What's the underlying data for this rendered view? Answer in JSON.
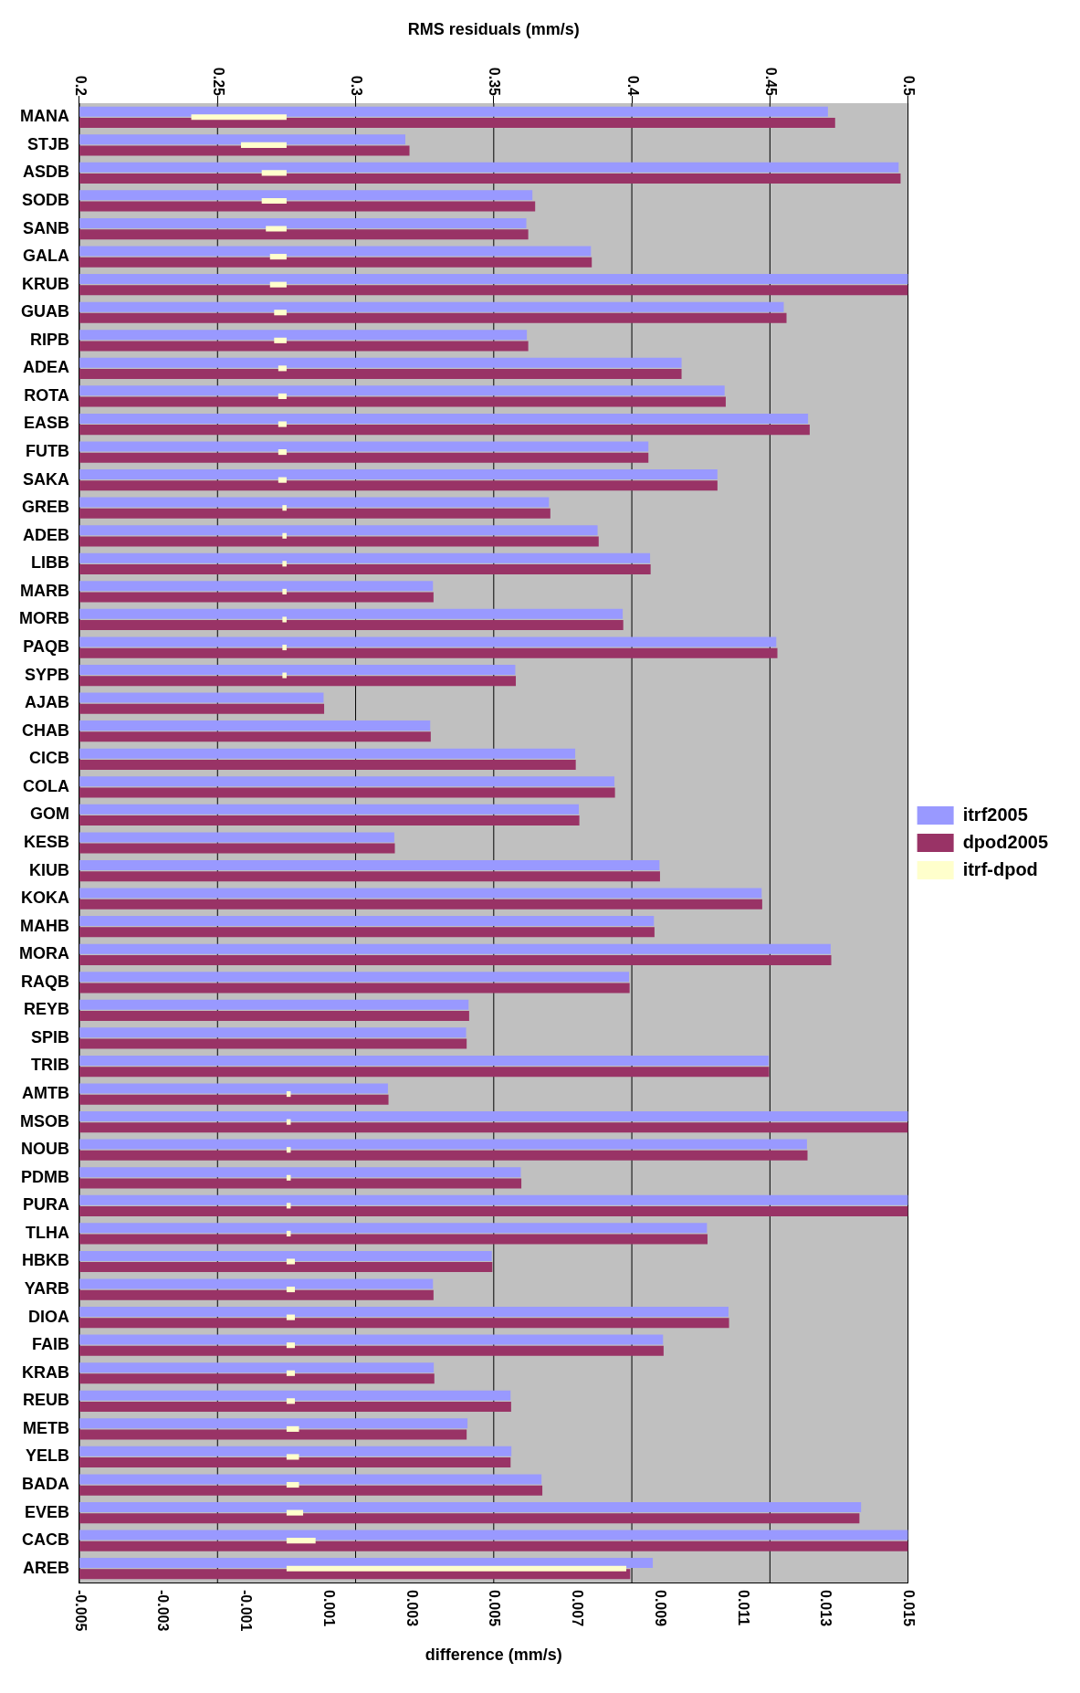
{
  "chart_data": {
    "type": "bar",
    "orientation": "horizontal",
    "xlabel": "difference (mm/s)",
    "x2label": "RMS residuals (mm/s)",
    "categories": [
      "MANA",
      "STJB",
      "ASDB",
      "SODB",
      "SANB",
      "GALA",
      "KRUB",
      "GUAB",
      "RIPB",
      "ADEA",
      "ROTA",
      "EASB",
      "FUTB",
      "SAKA",
      "GREB",
      "ADEB",
      "LIBB",
      "MARB",
      "MORB",
      "PAQB",
      "SYPB",
      "AJAB",
      "CHAB",
      "CICB",
      "COLA",
      "GOM",
      "KESB",
      "KIUB",
      "KOKA",
      "MAHB",
      "MORA",
      "RAQB",
      "REYB",
      "SPIB",
      "TRIB",
      "AMTB",
      "MSOB",
      "NOUB",
      "PDMB",
      "PURA",
      "TLHA",
      "HBKB",
      "YARB",
      "DIOA",
      "FAIB",
      "KRAB",
      "REUB",
      "METB",
      "YELB",
      "BADA",
      "EVEB",
      "CACB",
      "AREB"
    ],
    "series": [
      {
        "name": "itrf2005",
        "color": "#9999ff",
        "axis": "x2",
        "values": [
          0.471,
          0.318,
          0.4966,
          0.364,
          0.3618,
          0.3852,
          0.5,
          0.455,
          0.362,
          0.418,
          0.4336,
          0.4638,
          0.406,
          0.431,
          0.37,
          0.3876,
          0.4066,
          0.328,
          0.3967,
          0.4523,
          0.3578,
          0.2884,
          0.327,
          0.3795,
          0.3937,
          0.3808,
          0.314,
          0.41,
          0.447,
          0.408,
          0.472,
          0.399,
          0.3409,
          0.34,
          0.4495,
          0.3117,
          0.5,
          0.4634,
          0.3598,
          0.5,
          0.4272,
          0.3493,
          0.328,
          0.435,
          0.4113,
          0.3283,
          0.3561,
          0.3405,
          0.3564,
          0.3673,
          0.483,
          0.5,
          0.4076
        ]
      },
      {
        "name": "dpod2005",
        "color": "#993366",
        "axis": "x2",
        "values": [
          0.4736,
          0.3195,
          0.4973,
          0.365,
          0.3625,
          0.3855,
          0.5,
          0.456,
          0.3625,
          0.418,
          0.434,
          0.4644,
          0.406,
          0.431,
          0.3705,
          0.388,
          0.4068,
          0.3282,
          0.3969,
          0.4527,
          0.358,
          0.2886,
          0.3272,
          0.3797,
          0.3939,
          0.381,
          0.3142,
          0.4102,
          0.4472,
          0.4082,
          0.4722,
          0.3992,
          0.3411,
          0.3402,
          0.4497,
          0.3119,
          0.5,
          0.4636,
          0.36,
          0.5,
          0.4274,
          0.3495,
          0.3282,
          0.4352,
          0.4115,
          0.3285,
          0.3563,
          0.3402,
          0.3561,
          0.3676,
          0.4824,
          0.5,
          0.3994
        ]
      },
      {
        "name": "itrf-dpod",
        "color": "#ffffcc",
        "values": [
          -0.0023,
          -0.0011,
          -0.0006,
          -0.0006,
          -0.0005,
          -0.0004,
          -0.0004,
          -0.0003,
          -0.0003,
          -0.0002,
          -0.0002,
          -0.0002,
          -0.0002,
          -0.0002,
          -0.0001,
          -0.0001,
          -0.0001,
          -0.0001,
          -0.0001,
          -0.0001,
          -0.0001,
          null,
          null,
          null,
          null,
          null,
          null,
          null,
          null,
          null,
          null,
          null,
          null,
          null,
          null,
          0.0001,
          0.0001,
          0.0001,
          0.0001,
          0.0001,
          0.0001,
          0.0002,
          0.0002,
          0.0002,
          0.0002,
          0.0002,
          0.0002,
          0.0003,
          0.0003,
          0.0003,
          0.0004,
          0.0007,
          0.0082
        ]
      }
    ],
    "xlim": [
      -0.005,
      0.015
    ],
    "xticks": [
      -0.005,
      -0.003,
      -0.001,
      0.001,
      0.003,
      0.005,
      0.007,
      0.009,
      0.011,
      0.013,
      0.015
    ],
    "x2lim": [
      0.2,
      0.5
    ],
    "x2ticks": [
      0.2,
      0.25,
      0.3,
      0.35,
      0.4,
      0.45,
      0.5
    ],
    "grid": "x2",
    "legend": "right"
  }
}
